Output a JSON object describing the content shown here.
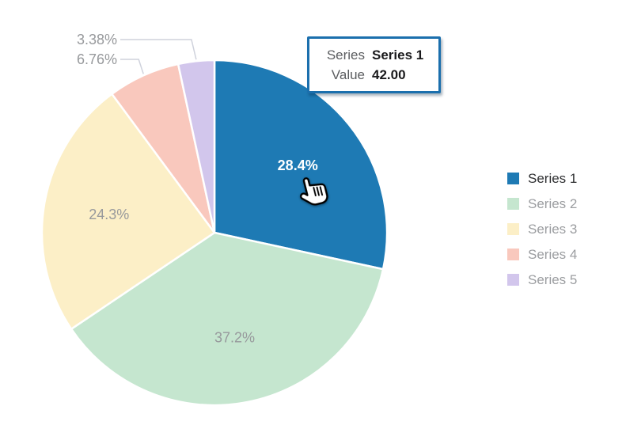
{
  "chart_data": {
    "type": "pie",
    "title": "",
    "series": [
      {
        "name": "Series 1",
        "percent": 28.4,
        "percent_label": "28.4%",
        "color": "#1E7AB4",
        "selected": true,
        "tooltip_value": "42.00"
      },
      {
        "name": "Series 2",
        "percent": 37.2,
        "percent_label": "37.2%",
        "color": "#C5E6CF",
        "selected": false
      },
      {
        "name": "Series 3",
        "percent": 24.3,
        "percent_label": "24.3%",
        "color": "#FCEFC7",
        "selected": false
      },
      {
        "name": "Series 4",
        "percent": 6.76,
        "percent_label": "6.76%",
        "color": "#F9C8BD",
        "selected": false
      },
      {
        "name": "Series 5",
        "percent": 3.38,
        "percent_label": "3.38%",
        "color": "#D2C6EC",
        "selected": false
      }
    ],
    "start_angle_deg": 0,
    "direction": "clockwise",
    "legend_position": "right",
    "inside_label_min_percent": 10,
    "labels_outside_with_leader": [
      "6.76%",
      "3.38%"
    ]
  },
  "tooltip": {
    "rows": [
      {
        "label": "Series",
        "value": "Series 1"
      },
      {
        "label": "Value",
        "value": "42.00"
      }
    ]
  },
  "colors": {
    "background": "#FFFFFF",
    "slice_stroke": "#FFFFFF",
    "inside_label_selected": "#FFFFFF",
    "label_gray": "#97999C",
    "leader_line": "#CFD2DC",
    "tooltip_border": "#1B6FAD",
    "tooltip_label": "#5B5D60",
    "tooltip_value": "#1A1A1C",
    "legend_text": "#9B9DA0",
    "legend_text_active": "#2E2F31"
  }
}
